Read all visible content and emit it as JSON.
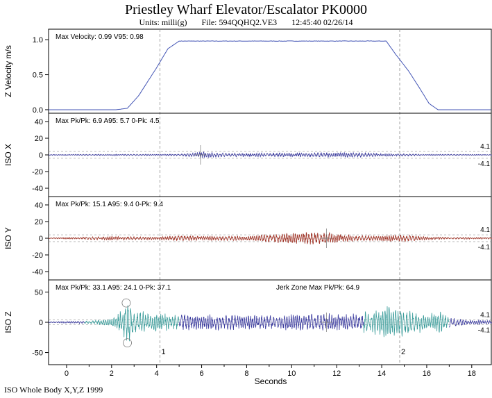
{
  "header": {
    "title": "Priestley Wharf    Elevator/Escalator  PK0000",
    "units": "Units: milli(g)",
    "file": "File: 594QQHQ2.VE3",
    "timestamp": "12:45:40 02/26/14"
  },
  "footer": "ISO Whole Body X,Y,Z  1999",
  "chart_data": {
    "type": "line",
    "xlabel": "Seconds",
    "xlim": [
      -0.8,
      18.9
    ],
    "xticks": [
      0,
      2,
      4,
      6,
      8,
      10,
      12,
      14,
      16,
      18
    ],
    "markers": [
      {
        "label": "1",
        "x": 4.15
      },
      {
        "label": "2",
        "x": 14.8
      }
    ],
    "panels": [
      {
        "id": "velocity",
        "ylabel": "Z Velocity m/s",
        "ylim": [
          -0.05,
          1.15
        ],
        "yticks": [
          0.0,
          0.5,
          1.0
        ],
        "ytick_labels": [
          "0.0",
          "0.5",
          "1.0"
        ],
        "annotation": "Max Velocity: 0.99  V95: 0.98",
        "color": "#4355b5",
        "profile": [
          [
            -0.8,
            0.0
          ],
          [
            2.2,
            0.0
          ],
          [
            2.7,
            0.02
          ],
          [
            3.2,
            0.2
          ],
          [
            4.0,
            0.6
          ],
          [
            4.5,
            0.87
          ],
          [
            5.0,
            0.98
          ],
          [
            14.2,
            0.98
          ],
          [
            14.6,
            0.8
          ],
          [
            15.2,
            0.55
          ],
          [
            15.7,
            0.3
          ],
          [
            16.1,
            0.09
          ],
          [
            16.5,
            0.0
          ],
          [
            18.9,
            0.0
          ]
        ]
      },
      {
        "id": "iso-x",
        "ylabel": "ISO X",
        "ylim": [
          -50,
          50
        ],
        "yticks": [
          -40,
          -20,
          0,
          20,
          40
        ],
        "ytick_labels": [
          "-40",
          "-20",
          "0",
          "20",
          "40"
        ],
        "annotation": "Max Pk/Pk: 6.9  A95: 5.7  0-Pk: 4.5",
        "threshold": 4.1,
        "threshold_labels": [
          "4.1",
          "-4.1"
        ],
        "color": "#3a3a9e",
        "envelope": [
          [
            -0.8,
            0.5
          ],
          [
            2.0,
            0.8
          ],
          [
            4.0,
            0.8
          ],
          [
            5.0,
            1.0
          ],
          [
            5.8,
            2.5
          ],
          [
            6.0,
            3.5
          ],
          [
            7.0,
            2.0
          ],
          [
            9.0,
            2.0
          ],
          [
            11.0,
            2.5
          ],
          [
            13.0,
            2.5
          ],
          [
            14.0,
            1.5
          ],
          [
            15.0,
            1.2
          ],
          [
            16.0,
            0.8
          ],
          [
            18.9,
            0.5
          ]
        ]
      },
      {
        "id": "iso-y",
        "ylabel": "ISO Y",
        "ylim": [
          -50,
          50
        ],
        "yticks": [
          -40,
          -20,
          0,
          20,
          40
        ],
        "ytick_labels": [
          "-40",
          "-20",
          "0",
          "20",
          "40"
        ],
        "annotation": "Max Pk/Pk: 15.1  A95: 9.4  0-Pk: 9.4",
        "threshold": 4.1,
        "threshold_labels": [
          "4.1",
          "-4.1"
        ],
        "color": "#9e2f22",
        "envelope": [
          [
            -0.8,
            0.5
          ],
          [
            1.0,
            1.5
          ],
          [
            2.0,
            2.0
          ],
          [
            4.0,
            1.5
          ],
          [
            5.0,
            3.0
          ],
          [
            6.0,
            2.5
          ],
          [
            8.0,
            2.5
          ],
          [
            9.0,
            4.5
          ],
          [
            10.0,
            6.0
          ],
          [
            11.5,
            7.0
          ],
          [
            12.0,
            4.5
          ],
          [
            13.0,
            3.0
          ],
          [
            14.0,
            3.0
          ],
          [
            15.0,
            4.0
          ],
          [
            16.0,
            1.5
          ],
          [
            17.0,
            1.0
          ],
          [
            18.9,
            1.0
          ]
        ]
      },
      {
        "id": "iso-z",
        "ylabel": "ISO Z",
        "ylim": [
          -70,
          70
        ],
        "yticks": [
          -50,
          0,
          50
        ],
        "ytick_labels": [
          "-50",
          "0",
          "50"
        ],
        "annotation": "Max Pk/Pk: 33.1  A95: 24.1  0-Pk: 37.1",
        "jerk_annotation": "Jerk Zone Max Pk/Pk: 64.9",
        "threshold": 4.1,
        "threshold_labels": [
          "4.1",
          "-4.1"
        ],
        "color_jerk": "#3a9c9a",
        "color_steady": "#3a3a9e",
        "jerk_zones": [
          [
            0.8,
            5.0
          ],
          [
            13.2,
            17.0
          ]
        ],
        "envelope": [
          [
            -0.8,
            1.0
          ],
          [
            1.0,
            2.0
          ],
          [
            2.0,
            6.0
          ],
          [
            2.5,
            20.0
          ],
          [
            2.7,
            32.0
          ],
          [
            3.0,
            18.0
          ],
          [
            4.0,
            14.0
          ],
          [
            5.0,
            12.0
          ],
          [
            6.0,
            12.0
          ],
          [
            8.0,
            11.0
          ],
          [
            10.0,
            12.0
          ],
          [
            11.5,
            14.0
          ],
          [
            12.5,
            12.0
          ],
          [
            13.5,
            18.0
          ],
          [
            14.3,
            26.0
          ],
          [
            15.0,
            20.0
          ],
          [
            16.0,
            14.0
          ],
          [
            16.6,
            16.0
          ],
          [
            17.0,
            7.0
          ],
          [
            18.0,
            3.0
          ],
          [
            18.9,
            3.0
          ]
        ]
      }
    ]
  }
}
